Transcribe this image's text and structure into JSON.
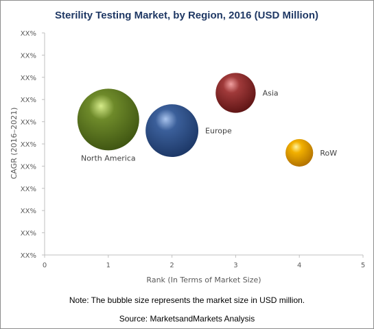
{
  "chart_data": {
    "type": "bubble",
    "title": "Sterility Testing Market, by Region, 2016 (USD Million)",
    "xlabel": "Rank (In Terms of Market Size)",
    "ylabel": "CAGR (2016–2021)",
    "xlim": [
      0,
      5
    ],
    "x_ticks": [
      "0",
      "1",
      "2",
      "3",
      "4",
      "5"
    ],
    "y_ticks": [
      "XX%",
      "XX%",
      "XX%",
      "XX%",
      "XX%",
      "XX%",
      "XX%",
      "XX%",
      "XX%",
      "XX%",
      "XX%"
    ],
    "ylim": [
      0,
      10
    ],
    "grid": false,
    "points": [
      {
        "label": "North America",
        "x": 1,
        "y": 6.1,
        "size": 1.0,
        "color": "#6e8a2a",
        "highlight": "#d6ec8a",
        "dark": "#3f5512"
      },
      {
        "label": "Europe",
        "x": 2,
        "y": 5.6,
        "size": 0.73,
        "color": "#3b5f9a",
        "highlight": "#a9c4ee",
        "dark": "#1c3766"
      },
      {
        "label": "Asia",
        "x": 3,
        "y": 7.3,
        "size": 0.42,
        "color": "#a03a3a",
        "highlight": "#f0a0a0",
        "dark": "#5e1414"
      },
      {
        "label": "RoW",
        "x": 4,
        "y": 4.6,
        "size": 0.2,
        "color": "#f2b000",
        "highlight": "#fff4a0",
        "dark": "#b07000"
      }
    ]
  },
  "note": "Note: The bubble size represents the market size in USD million.",
  "source": "Source: MarketsandMarkets Analysis"
}
